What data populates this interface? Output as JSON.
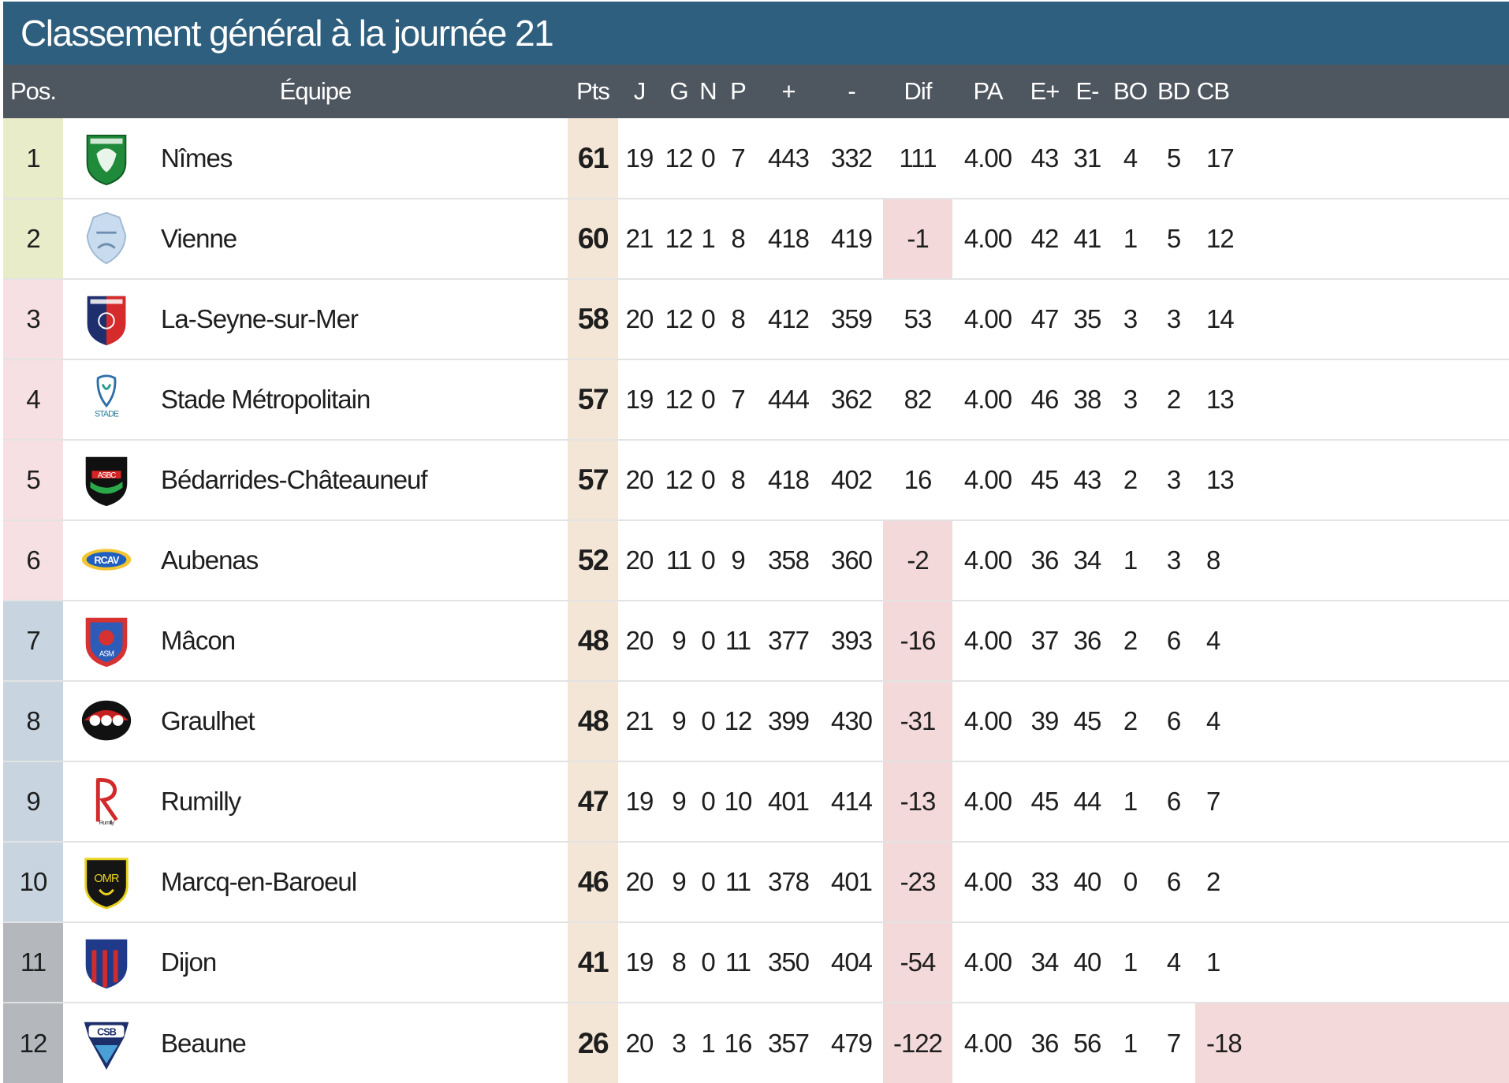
{
  "title": "Classement général à la journée 21",
  "headers": {
    "pos": "Pos.",
    "team": "Équipe",
    "pts": "Pts",
    "j": "J",
    "g": "G",
    "n": "N",
    "p": "P",
    "plus": "+",
    "minus": "-",
    "dif": "Dif",
    "pa": "PA",
    "eplus": "E+",
    "eminus": "E-",
    "bo": "BO",
    "bd": "BD",
    "cb": "CB"
  },
  "zone_colors": {
    "top": "#e8ecc8",
    "playoff": "#f6e0e4",
    "mid": "#c8d4df",
    "bottom": "#b4b7bb"
  },
  "negative_bg": "#f3d9d9",
  "points_bg": "#f3e6d6",
  "rows": [
    {
      "pos": "1",
      "team": "Nîmes",
      "logo": "nimes-logo",
      "zone": "top",
      "pts": "61",
      "j": "19",
      "g": "12",
      "n": "0",
      "p": "7",
      "plus": "443",
      "minus": "332",
      "dif": "111",
      "pa": "4.00",
      "eplus": "43",
      "eminus": "31",
      "bo": "4",
      "bd": "5",
      "cb": "17"
    },
    {
      "pos": "2",
      "team": "Vienne",
      "logo": "vienne-logo",
      "zone": "top",
      "pts": "60",
      "j": "21",
      "g": "12",
      "n": "1",
      "p": "8",
      "plus": "418",
      "minus": "419",
      "dif": "-1",
      "pa": "4.00",
      "eplus": "42",
      "eminus": "41",
      "bo": "1",
      "bd": "5",
      "cb": "12"
    },
    {
      "pos": "3",
      "team": "La-Seyne-sur-Mer",
      "logo": "la-seyne-logo",
      "zone": "playoff",
      "pts": "58",
      "j": "20",
      "g": "12",
      "n": "0",
      "p": "8",
      "plus": "412",
      "minus": "359",
      "dif": "53",
      "pa": "4.00",
      "eplus": "47",
      "eminus": "35",
      "bo": "3",
      "bd": "3",
      "cb": "14"
    },
    {
      "pos": "4",
      "team": "Stade Métropolitain",
      "logo": "stade-logo",
      "zone": "playoff",
      "pts": "57",
      "j": "19",
      "g": "12",
      "n": "0",
      "p": "7",
      "plus": "444",
      "minus": "362",
      "dif": "82",
      "pa": "4.00",
      "eplus": "46",
      "eminus": "38",
      "bo": "3",
      "bd": "2",
      "cb": "13"
    },
    {
      "pos": "5",
      "team": "Bédarrides-Châteauneuf",
      "logo": "bedarrides-logo",
      "zone": "playoff",
      "pts": "57",
      "j": "20",
      "g": "12",
      "n": "0",
      "p": "8",
      "plus": "418",
      "minus": "402",
      "dif": "16",
      "pa": "4.00",
      "eplus": "45",
      "eminus": "43",
      "bo": "2",
      "bd": "3",
      "cb": "13"
    },
    {
      "pos": "6",
      "team": "Aubenas",
      "logo": "aubenas-logo",
      "zone": "playoff",
      "pts": "52",
      "j": "20",
      "g": "11",
      "n": "0",
      "p": "9",
      "plus": "358",
      "minus": "360",
      "dif": "-2",
      "pa": "4.00",
      "eplus": "36",
      "eminus": "34",
      "bo": "1",
      "bd": "3",
      "cb": "8"
    },
    {
      "pos": "7",
      "team": "Mâcon",
      "logo": "macon-logo",
      "zone": "mid",
      "pts": "48",
      "j": "20",
      "g": "9",
      "n": "0",
      "p": "11",
      "plus": "377",
      "minus": "393",
      "dif": "-16",
      "pa": "4.00",
      "eplus": "37",
      "eminus": "36",
      "bo": "2",
      "bd": "6",
      "cb": "4"
    },
    {
      "pos": "8",
      "team": "Graulhet",
      "logo": "graulhet-logo",
      "zone": "mid",
      "pts": "48",
      "j": "21",
      "g": "9",
      "n": "0",
      "p": "12",
      "plus": "399",
      "minus": "430",
      "dif": "-31",
      "pa": "4.00",
      "eplus": "39",
      "eminus": "45",
      "bo": "2",
      "bd": "6",
      "cb": "4"
    },
    {
      "pos": "9",
      "team": "Rumilly",
      "logo": "rumilly-logo",
      "zone": "mid",
      "pts": "47",
      "j": "19",
      "g": "9",
      "n": "0",
      "p": "10",
      "plus": "401",
      "minus": "414",
      "dif": "-13",
      "pa": "4.00",
      "eplus": "45",
      "eminus": "44",
      "bo": "1",
      "bd": "6",
      "cb": "7"
    },
    {
      "pos": "10",
      "team": "Marcq-en-Baroeul",
      "logo": "marcq-logo",
      "zone": "mid",
      "pts": "46",
      "j": "20",
      "g": "9",
      "n": "0",
      "p": "11",
      "plus": "378",
      "minus": "401",
      "dif": "-23",
      "pa": "4.00",
      "eplus": "33",
      "eminus": "40",
      "bo": "0",
      "bd": "6",
      "cb": "2"
    },
    {
      "pos": "11",
      "team": "Dijon",
      "logo": "dijon-logo",
      "zone": "bottom",
      "pts": "41",
      "j": "19",
      "g": "8",
      "n": "0",
      "p": "11",
      "plus": "350",
      "minus": "404",
      "dif": "-54",
      "pa": "4.00",
      "eplus": "34",
      "eminus": "40",
      "bo": "1",
      "bd": "4",
      "cb": "1"
    },
    {
      "pos": "12",
      "team": "Beaune",
      "logo": "beaune-logo",
      "zone": "bottom",
      "pts": "26",
      "j": "20",
      "g": "3",
      "n": "1",
      "p": "16",
      "plus": "357",
      "minus": "479",
      "dif": "-122",
      "pa": "4.00",
      "eplus": "36",
      "eminus": "56",
      "bo": "1",
      "bd": "7",
      "cb": "-18"
    }
  ]
}
